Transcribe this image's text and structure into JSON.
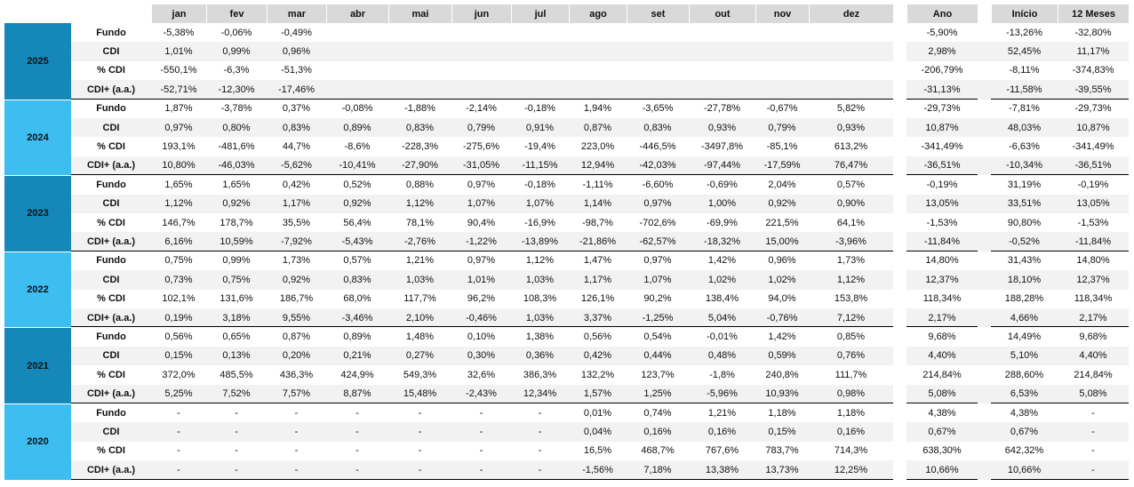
{
  "table": {
    "columns": [
      "jan",
      "fev",
      "mar",
      "abr",
      "mai",
      "jun",
      "jul",
      "ago",
      "set",
      "out",
      "nov",
      "dez",
      "Ano",
      "Início",
      "12 Meses"
    ],
    "blocks": [
      {
        "year": "2025",
        "rows": [
          {
            "label": "Fundo",
            "values": [
              "-5,38%",
              "-0,06%",
              "-0,49%",
              null,
              null,
              null,
              null,
              null,
              null,
              null,
              null,
              null,
              "-5,90%",
              "-13,26%",
              "-32,80%"
            ]
          },
          {
            "label": "CDI",
            "values": [
              "1,01%",
              "0,99%",
              "0,96%",
              null,
              null,
              null,
              null,
              null,
              null,
              null,
              null,
              null,
              "2,98%",
              "52,45%",
              "11,17%"
            ]
          },
          {
            "label": "% CDI",
            "values": [
              "-550,1%",
              "-6,3%",
              "-51,3%",
              null,
              null,
              null,
              null,
              null,
              null,
              null,
              null,
              null,
              "-206,79%",
              "-8,11%",
              "-374,83%"
            ]
          },
          {
            "label": "CDI+ (a.a.)",
            "values": [
              "-52,71%",
              "-12,30%",
              "-17,46%",
              null,
              null,
              null,
              null,
              null,
              null,
              null,
              null,
              null,
              "-31,13%",
              "-11,58%",
              "-39,55%"
            ]
          }
        ]
      },
      {
        "year": "2024",
        "rows": [
          {
            "label": "Fundo",
            "values": [
              "1,87%",
              "-3,78%",
              "0,37%",
              "-0,08%",
              "-1,88%",
              "-2,14%",
              "-0,18%",
              "1,94%",
              "-3,65%",
              "-27,78%",
              "-0,67%",
              "5,82%",
              "-29,73%",
              "-7,81%",
              "-29,73%"
            ]
          },
          {
            "label": "CDI",
            "values": [
              "0,97%",
              "0,80%",
              "0,83%",
              "0,89%",
              "0,83%",
              "0,79%",
              "0,91%",
              "0,87%",
              "0,83%",
              "0,93%",
              "0,79%",
              "0,93%",
              "10,87%",
              "48,03%",
              "10,87%"
            ]
          },
          {
            "label": "% CDI",
            "values": [
              "193,1%",
              "-481,6%",
              "44,7%",
              "-8,6%",
              "-228,3%",
              "-275,6%",
              "-19,4%",
              "223,0%",
              "-446,5%",
              "-3497,8%",
              "-85,1%",
              "613,2%",
              "-341,49%",
              "-6,63%",
              "-341,49%"
            ]
          },
          {
            "label": "CDI+ (a.a.)",
            "values": [
              "10,80%",
              "-46,03%",
              "-5,62%",
              "-10,41%",
              "-27,90%",
              "-31,05%",
              "-11,15%",
              "12,94%",
              "-42,03%",
              "-97,44%",
              "-17,59%",
              "76,47%",
              "-36,51%",
              "-10,34%",
              "-36,51%"
            ]
          }
        ]
      },
      {
        "year": "2023",
        "rows": [
          {
            "label": "Fundo",
            "values": [
              "1,65%",
              "1,65%",
              "0,42%",
              "0,52%",
              "0,88%",
              "0,97%",
              "-0,18%",
              "-1,11%",
              "-6,60%",
              "-0,69%",
              "2,04%",
              "0,57%",
              "-0,19%",
              "31,19%",
              "-0,19%"
            ]
          },
          {
            "label": "CDI",
            "values": [
              "1,12%",
              "0,92%",
              "1,17%",
              "0,92%",
              "1,12%",
              "1,07%",
              "1,07%",
              "1,14%",
              "0,97%",
              "1,00%",
              "0,92%",
              "0,90%",
              "13,05%",
              "33,51%",
              "13,05%"
            ]
          },
          {
            "label": "% CDI",
            "values": [
              "146,7%",
              "178,7%",
              "35,5%",
              "56,4%",
              "78,1%",
              "90,4%",
              "-16,9%",
              "-98,7%",
              "-702,6%",
              "-69,9%",
              "221,5%",
              "64,1%",
              "-1,53%",
              "90,80%",
              "-1,53%"
            ]
          },
          {
            "label": "CDI+ (a.a.)",
            "values": [
              "6,16%",
              "10,59%",
              "-7,92%",
              "-5,43%",
              "-2,76%",
              "-1,22%",
              "-13,89%",
              "-21,86%",
              "-62,57%",
              "-18,32%",
              "15,00%",
              "-3,96%",
              "-11,84%",
              "-0,52%",
              "-11,84%"
            ]
          }
        ]
      },
      {
        "year": "2022",
        "rows": [
          {
            "label": "Fundo",
            "values": [
              "0,75%",
              "0,99%",
              "1,73%",
              "0,57%",
              "1,21%",
              "0,97%",
              "1,12%",
              "1,47%",
              "0,97%",
              "1,42%",
              "0,96%",
              "1,73%",
              "14,80%",
              "31,43%",
              "14,80%"
            ]
          },
          {
            "label": "CDI",
            "values": [
              "0,73%",
              "0,75%",
              "0,92%",
              "0,83%",
              "1,03%",
              "1,01%",
              "1,03%",
              "1,17%",
              "1,07%",
              "1,02%",
              "1,02%",
              "1,12%",
              "12,37%",
              "18,10%",
              "12,37%"
            ]
          },
          {
            "label": "% CDI",
            "values": [
              "102,1%",
              "131,6%",
              "186,7%",
              "68,0%",
              "117,7%",
              "96,2%",
              "108,3%",
              "126,1%",
              "90,2%",
              "138,4%",
              "94,0%",
              "153,8%",
              "118,34%",
              "188,28%",
              "118,34%"
            ]
          },
          {
            "label": "CDI+ (a.a.)",
            "values": [
              "0,19%",
              "3,18%",
              "9,55%",
              "-3,46%",
              "2,10%",
              "-0,46%",
              "1,03%",
              "3,37%",
              "-1,25%",
              "5,04%",
              "-0,76%",
              "7,12%",
              "2,17%",
              "4,66%",
              "2,17%"
            ]
          }
        ]
      },
      {
        "year": "2021",
        "rows": [
          {
            "label": "Fundo",
            "values": [
              "0,56%",
              "0,65%",
              "0,87%",
              "0,89%",
              "1,48%",
              "0,10%",
              "1,38%",
              "0,56%",
              "0,54%",
              "-0,01%",
              "1,42%",
              "0,85%",
              "9,68%",
              "14,49%",
              "9,68%"
            ]
          },
          {
            "label": "CDI",
            "values": [
              "0,15%",
              "0,13%",
              "0,20%",
              "0,21%",
              "0,27%",
              "0,30%",
              "0,36%",
              "0,42%",
              "0,44%",
              "0,48%",
              "0,59%",
              "0,76%",
              "4,40%",
              "5,10%",
              "4,40%"
            ]
          },
          {
            "label": "% CDI",
            "values": [
              "372,0%",
              "485,5%",
              "436,3%",
              "424,9%",
              "549,3%",
              "32,6%",
              "386,3%",
              "132,2%",
              "123,7%",
              "-1,8%",
              "240,8%",
              "111,7%",
              "214,84%",
              "288,60%",
              "214,84%"
            ]
          },
          {
            "label": "CDI+ (a.a.)",
            "values": [
              "5,25%",
              "7,52%",
              "7,57%",
              "8,87%",
              "15,48%",
              "-2,43%",
              "12,34%",
              "1,57%",
              "1,25%",
              "-5,96%",
              "10,93%",
              "0,98%",
              "5,08%",
              "6,53%",
              "5,08%"
            ]
          }
        ]
      },
      {
        "year": "2020",
        "rows": [
          {
            "label": "Fundo",
            "values": [
              "-",
              "-",
              "-",
              "-",
              "-",
              "-",
              "-",
              "0,01%",
              "0,74%",
              "1,21%",
              "1,18%",
              "1,18%",
              "4,38%",
              "4,38%",
              "-"
            ]
          },
          {
            "label": "CDI",
            "values": [
              "-",
              "-",
              "-",
              "-",
              "-",
              "-",
              "-",
              "0,04%",
              "0,16%",
              "0,16%",
              "0,15%",
              "0,16%",
              "0,67%",
              "0,67%",
              "-"
            ]
          },
          {
            "label": "% CDI",
            "values": [
              "-",
              "-",
              "-",
              "-",
              "-",
              "-",
              "-",
              "16,5%",
              "468,7%",
              "767,6%",
              "783,7%",
              "714,3%",
              "638,30%",
              "642,32%",
              "-"
            ]
          },
          {
            "label": "CDI+ (a.a.)",
            "values": [
              "-",
              "-",
              "-",
              "-",
              "-",
              "-",
              "-",
              "-1,56%",
              "7,18%",
              "13,38%",
              "13,73%",
              "12,25%",
              "10,66%",
              "10,66%",
              "-"
            ]
          }
        ]
      }
    ]
  }
}
